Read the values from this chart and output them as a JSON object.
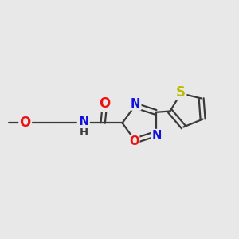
{
  "background_color": "#e8e8e8",
  "bond_color": "#3a3a3a",
  "bond_width": 1.6,
  "atom_colors": {
    "O": "#ee1111",
    "N": "#1111dd",
    "S": "#bbbb00",
    "C": "#3a3a3a",
    "H": "#3a3a3a"
  },
  "font_size": 10.5,
  "fig_width": 3.0,
  "fig_height": 3.0,
  "dpi": 100,
  "xlim": [
    0,
    10
  ],
  "ylim": [
    0,
    10
  ]
}
